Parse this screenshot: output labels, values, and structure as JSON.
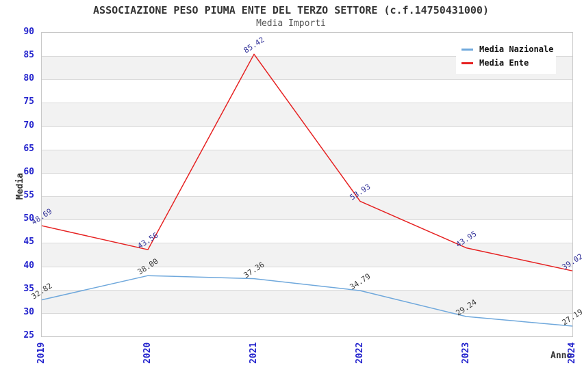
{
  "chart_data": {
    "type": "line",
    "title": "ASSOCIAZIONE PESO PIUMA ENTE DEL TERZO SETTORE (c.f.14750431000)",
    "subtitle": "Media Importi",
    "xlabel": "Anno",
    "ylabel": "Media",
    "categories": [
      "2019",
      "2020",
      "2021",
      "2022",
      "2023",
      "2024"
    ],
    "series": [
      {
        "name": "Media Nazionale",
        "color": "#6fa8dc",
        "label_color": "#333333",
        "values": [
          32.82,
          38.0,
          37.36,
          34.79,
          29.24,
          27.19
        ]
      },
      {
        "name": "Media Ente",
        "color": "#e62222",
        "label_color": "#333399",
        "values": [
          48.69,
          43.56,
          85.42,
          53.93,
          43.95,
          39.02
        ]
      }
    ],
    "ylim": [
      25,
      90
    ],
    "ytick_step": 5,
    "grid": "horizontal-gridlines-with-alternating-bands",
    "legend_position": "top-right",
    "colors": {
      "tick_label": "#2424cd",
      "band_gray": "#f2f2f2",
      "gridline": "#d9d9d9",
      "plot_border": "#c8c8c8",
      "title_text": "#333333"
    }
  }
}
